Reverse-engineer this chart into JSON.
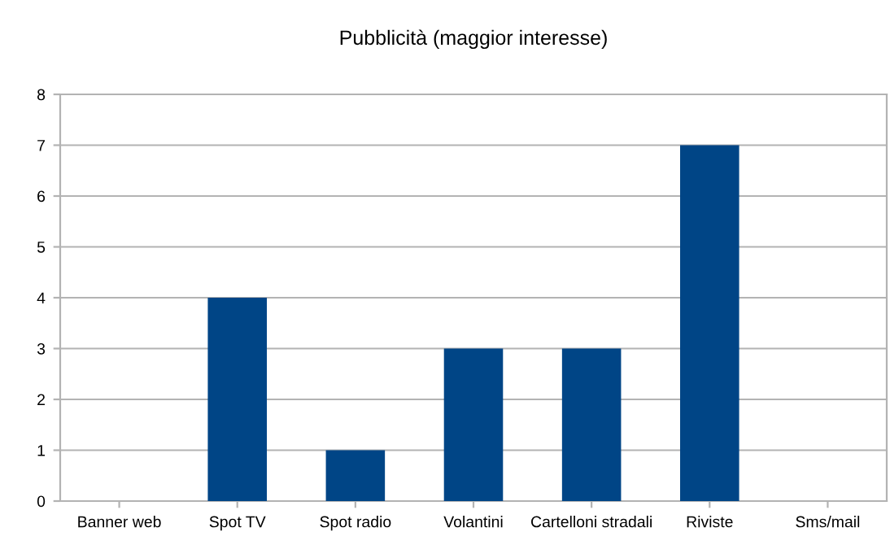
{
  "chart_data": {
    "type": "bar",
    "title": "Pubblicità (maggior interesse)",
    "categories": [
      "Banner web",
      "Spot TV",
      "Spot radio",
      "Volantini",
      "Cartelloni stradali",
      "Riviste",
      "Sms/mail"
    ],
    "values": [
      0,
      4,
      1,
      3,
      3,
      7,
      0
    ],
    "color": "#004586",
    "ylim": [
      0,
      8
    ],
    "yticks": [
      0,
      1,
      2,
      3,
      4,
      5,
      6,
      7,
      8
    ],
    "grid": "y",
    "legend": false
  }
}
